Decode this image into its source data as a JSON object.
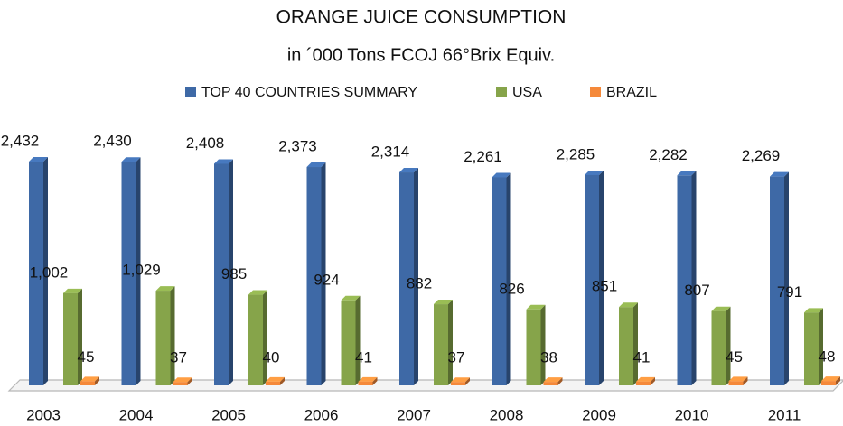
{
  "chart_data": {
    "type": "bar3d",
    "title": "ORANGE JUICE CONSUMPTION",
    "subtitle": "in ´000 Tons FCOJ 66°Brix Equiv.",
    "categories": [
      "2003",
      "2004",
      "2005",
      "2006",
      "2007",
      "2008",
      "2009",
      "2010",
      "2011"
    ],
    "series": [
      {
        "name": "TOP 40 COUNTRIES SUMMARY",
        "color": "#3e69a6",
        "values": [
          2432,
          2430,
          2408,
          2373,
          2314,
          2261,
          2285,
          2282,
          2269
        ],
        "value_labels": [
          "2,432",
          "2,430",
          "2,408",
          "2,373",
          "2,314",
          "2,261",
          "2,285",
          "2,282",
          "2,269"
        ]
      },
      {
        "name": "USA",
        "color": "#86a44a",
        "values": [
          1002,
          1029,
          985,
          924,
          882,
          826,
          851,
          807,
          791
        ],
        "value_labels": [
          "1,002",
          "1,029",
          "985",
          "924",
          "882",
          "826",
          "851",
          "807",
          "791"
        ]
      },
      {
        "name": "BRAZIL",
        "color": "#f5893a",
        "values": [
          45,
          37,
          40,
          41,
          37,
          38,
          41,
          45,
          48
        ]
      }
    ]
  }
}
